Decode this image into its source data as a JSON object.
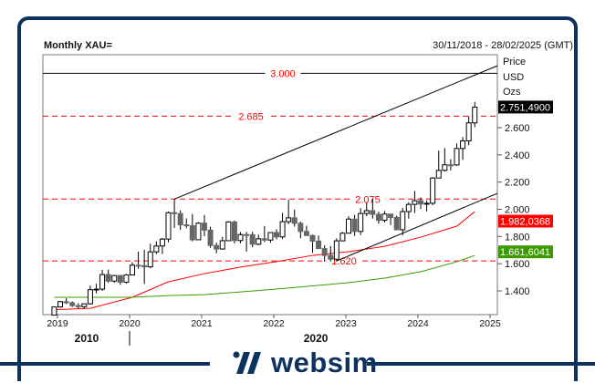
{
  "header": {
    "title": "Monthly XAU=",
    "date_range": "30/11/2018 - 28/02/2025 (GMT)"
  },
  "axis_header": {
    "line1": "Price",
    "line2": "USD",
    "line3": "Ozs"
  },
  "brand": {
    "name": "websim",
    "color": "#0d3260"
  },
  "chart_data": {
    "type": "candlestick",
    "title": "Monthly XAU=",
    "ylim": [
      1220,
      3160
    ],
    "y_ticks": [
      1400,
      1600,
      1800,
      2000,
      2200,
      2400,
      2600
    ],
    "y_tick_labels": [
      "1.400",
      "1.600",
      "1.800",
      "2.000",
      "2.200",
      "2.400",
      "2.600"
    ],
    "x_ticks": [
      "2019",
      "2020",
      "2021",
      "2022",
      "2023",
      "2024",
      "2025"
    ],
    "decade_labels": [
      {
        "label": "2010",
        "at": "2019"
      },
      {
        "label": "2020",
        "at": "2022-08"
      }
    ],
    "decade_marker": "2020",
    "up_color": "#ffffff",
    "down_color": "#666666",
    "candles": [
      [
        "2018-12",
        1222,
        1284,
        1221,
        1282
      ],
      [
        "2019-01",
        1282,
        1326,
        1276,
        1321
      ],
      [
        "2019-02",
        1321,
        1346,
        1303,
        1313
      ],
      [
        "2019-03",
        1313,
        1324,
        1281,
        1292
      ],
      [
        "2019-04",
        1292,
        1310,
        1266,
        1284
      ],
      [
        "2019-05",
        1284,
        1306,
        1268,
        1305
      ],
      [
        "2019-06",
        1305,
        1439,
        1300,
        1409
      ],
      [
        "2019-07",
        1409,
        1452,
        1382,
        1413
      ],
      [
        "2019-08",
        1413,
        1555,
        1400,
        1520
      ],
      [
        "2019-09",
        1520,
        1557,
        1459,
        1472
      ],
      [
        "2019-10",
        1472,
        1517,
        1459,
        1513
      ],
      [
        "2019-11",
        1513,
        1516,
        1445,
        1464
      ],
      [
        "2019-12",
        1464,
        1525,
        1453,
        1517
      ],
      [
        "2020-01",
        1517,
        1611,
        1517,
        1589
      ],
      [
        "2020-02",
        1589,
        1689,
        1563,
        1585
      ],
      [
        "2020-03",
        1585,
        1703,
        1451,
        1577
      ],
      [
        "2020-04",
        1577,
        1747,
        1567,
        1687
      ],
      [
        "2020-05",
        1687,
        1765,
        1670,
        1730
      ],
      [
        "2020-06",
        1730,
        1789,
        1671,
        1781
      ],
      [
        "2020-07",
        1781,
        1984,
        1757,
        1975
      ],
      [
        "2020-08",
        1975,
        2075,
        1863,
        1968
      ],
      [
        "2020-09",
        1968,
        1992,
        1848,
        1886
      ],
      [
        "2020-10",
        1886,
        1933,
        1860,
        1879
      ],
      [
        "2020-11",
        1879,
        1965,
        1764,
        1776
      ],
      [
        "2020-12",
        1776,
        1906,
        1775,
        1898
      ],
      [
        "2021-01",
        1898,
        1959,
        1802,
        1847
      ],
      [
        "2021-02",
        1847,
        1872,
        1717,
        1734
      ],
      [
        "2021-03",
        1734,
        1755,
        1677,
        1708
      ],
      [
        "2021-04",
        1708,
        1798,
        1703,
        1769
      ],
      [
        "2021-05",
        1769,
        1913,
        1766,
        1907
      ],
      [
        "2021-06",
        1907,
        1916,
        1750,
        1770
      ],
      [
        "2021-07",
        1770,
        1832,
        1750,
        1814
      ],
      [
        "2021-08",
        1814,
        1834,
        1688,
        1813
      ],
      [
        "2021-09",
        1813,
        1834,
        1721,
        1743
      ],
      [
        "2021-10",
        1743,
        1814,
        1736,
        1783
      ],
      [
        "2021-11",
        1783,
        1877,
        1758,
        1774
      ],
      [
        "2021-12",
        1774,
        1831,
        1753,
        1829
      ],
      [
        "2022-01",
        1829,
        1853,
        1780,
        1797
      ],
      [
        "2022-02",
        1797,
        1974,
        1781,
        1909
      ],
      [
        "2022-03",
        1909,
        2070,
        1890,
        1937
      ],
      [
        "2022-04",
        1937,
        1998,
        1872,
        1897
      ],
      [
        "2022-05",
        1897,
        1910,
        1787,
        1837
      ],
      [
        "2022-06",
        1837,
        1879,
        1805,
        1807
      ],
      [
        "2022-07",
        1807,
        1814,
        1681,
        1766
      ],
      [
        "2022-08",
        1766,
        1807,
        1709,
        1711
      ],
      [
        "2022-09",
        1711,
        1735,
        1615,
        1661
      ],
      [
        "2022-10",
        1661,
        1730,
        1617,
        1633
      ],
      [
        "2022-11",
        1633,
        1786,
        1616,
        1768
      ],
      [
        "2022-12",
        1768,
        1833,
        1765,
        1824
      ],
      [
        "2023-01",
        1824,
        1949,
        1823,
        1928
      ],
      [
        "2023-02",
        1928,
        1959,
        1804,
        1837
      ],
      [
        "2023-03",
        1837,
        2009,
        1810,
        1969
      ],
      [
        "2023-04",
        1969,
        2048,
        1950,
        1990
      ],
      [
        "2023-05",
        1990,
        2079,
        1932,
        1963
      ],
      [
        "2023-06",
        1963,
        1983,
        1893,
        1919
      ],
      [
        "2023-07",
        1919,
        1987,
        1903,
        1965
      ],
      [
        "2023-08",
        1965,
        1966,
        1884,
        1940
      ],
      [
        "2023-09",
        1940,
        1953,
        1846,
        1849
      ],
      [
        "2023-10",
        1849,
        2009,
        1810,
        1983
      ],
      [
        "2023-11",
        1983,
        2052,
        1931,
        2036
      ],
      [
        "2023-12",
        2036,
        2135,
        1973,
        2063
      ],
      [
        "2024-01",
        2063,
        2088,
        2002,
        2039
      ],
      [
        "2024-02",
        2039,
        2065,
        1984,
        2044
      ],
      [
        "2024-03",
        2044,
        2236,
        2030,
        2230
      ],
      [
        "2024-04",
        2230,
        2431,
        2228,
        2286
      ],
      [
        "2024-05",
        2286,
        2450,
        2277,
        2327
      ],
      [
        "2024-06",
        2327,
        2368,
        2286,
        2326
      ],
      [
        "2024-07",
        2326,
        2484,
        2319,
        2447
      ],
      [
        "2024-08",
        2447,
        2531,
        2364,
        2503
      ],
      [
        "2024-09",
        2503,
        2685,
        2471,
        2635
      ],
      [
        "2024-10",
        2635,
        2790,
        2604,
        2751
      ]
    ],
    "horizontal_levels": [
      {
        "value": 3000,
        "label": "3.000",
        "color": "#000000",
        "style": "solid"
      },
      {
        "value": 2685,
        "label": "2.685",
        "color": "#ff0000",
        "style": "dashed"
      },
      {
        "value": 2075,
        "label": "2.075",
        "color": "#ff0000",
        "style": "dashed"
      },
      {
        "value": 1620,
        "label": "1.620",
        "color": "#ff0000",
        "style": "dashed"
      }
    ],
    "trendlines": [
      {
        "from": [
          "2020-08",
          2075
        ],
        "to": [
          "2025-02",
          3055
        ],
        "color": "#000000"
      },
      {
        "from": [
          "2022-11",
          1620
        ],
        "to": [
          "2025-02",
          2117
        ],
        "color": "#000000"
      }
    ],
    "moving_averages": [
      {
        "color": "#ff0000",
        "last_label": "1.982,0368",
        "points": [
          [
            "2018-12",
            1262
          ],
          [
            "2019-06",
            1272
          ],
          [
            "2020-01",
            1353
          ],
          [
            "2020-07",
            1467
          ],
          [
            "2021-01",
            1527
          ],
          [
            "2021-07",
            1575
          ],
          [
            "2022-01",
            1615
          ],
          [
            "2022-07",
            1661
          ],
          [
            "2023-01",
            1688
          ],
          [
            "2023-07",
            1728
          ],
          [
            "2024-01",
            1795
          ],
          [
            "2024-07",
            1876
          ],
          [
            "2024-10",
            1982
          ]
        ]
      },
      {
        "color": "#3c9a00",
        "last_label": "1.661,6041",
        "points": [
          [
            "2018-12",
            1353
          ],
          [
            "2020-01",
            1353
          ],
          [
            "2020-07",
            1366
          ],
          [
            "2021-01",
            1372
          ],
          [
            "2022-01",
            1413
          ],
          [
            "2023-01",
            1460
          ],
          [
            "2023-07",
            1494
          ],
          [
            "2024-01",
            1541
          ],
          [
            "2024-07",
            1614
          ],
          [
            "2024-10",
            1661
          ]
        ]
      }
    ],
    "last_price": {
      "label": "2.751,4900",
      "value": 2751.49
    }
  }
}
